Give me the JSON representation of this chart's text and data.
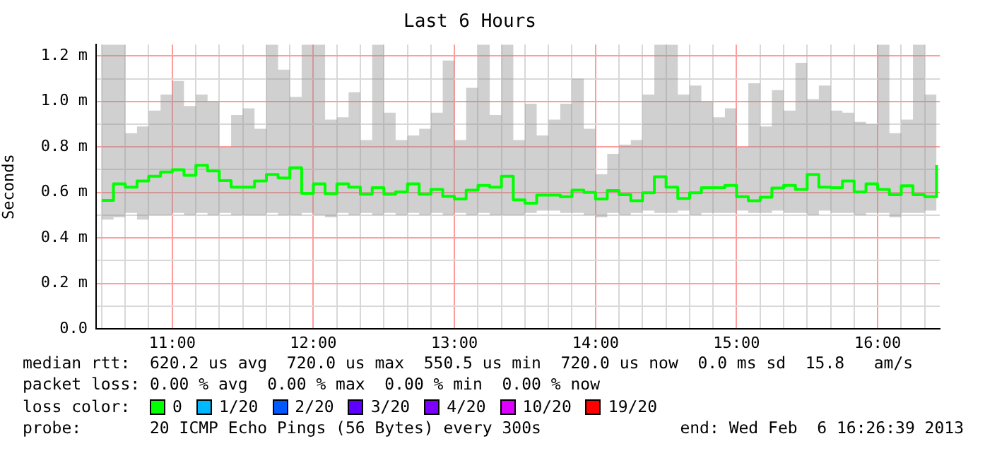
{
  "chart_data": {
    "type": "step",
    "title": "Last 6 Hours",
    "ylabel": "Seconds",
    "legend_title": "loss color:",
    "legend": "bottom",
    "grid": true,
    "x": [
      10.5,
      10.583,
      10.667,
      10.75,
      10.833,
      10.917,
      11,
      11.083,
      11.167,
      11.25,
      11.333,
      11.417,
      11.5,
      11.583,
      11.667,
      11.75,
      11.833,
      11.917,
      12,
      12.083,
      12.167,
      12.25,
      12.333,
      12.417,
      12.5,
      12.583,
      12.667,
      12.75,
      12.833,
      12.917,
      13,
      13.083,
      13.167,
      13.25,
      13.333,
      13.417,
      13.5,
      13.583,
      13.667,
      13.75,
      13.833,
      13.917,
      14,
      14.083,
      14.167,
      14.25,
      14.333,
      14.417,
      14.5,
      14.583,
      14.667,
      14.75,
      14.833,
      14.917,
      15,
      15.083,
      15.167,
      15.25,
      15.333,
      15.417,
      15.5,
      15.583,
      15.667,
      15.75,
      15.833,
      15.917,
      16,
      16.083,
      16.167,
      16.25,
      16.333,
      16.417
    ],
    "xlim": [
      10.46,
      16.44
    ],
    "xticks": [
      {
        "value": 10.5,
        "label": null
      },
      {
        "value": 10.667,
        "label": null
      },
      {
        "value": 10.833,
        "label": null
      },
      {
        "value": 11,
        "label": "11:00"
      },
      {
        "value": 11.167,
        "label": null
      },
      {
        "value": 11.333,
        "label": null
      },
      {
        "value": 11.5,
        "label": null
      },
      {
        "value": 11.667,
        "label": null
      },
      {
        "value": 11.833,
        "label": null
      },
      {
        "value": 12,
        "label": "12:00"
      },
      {
        "value": 12.167,
        "label": null
      },
      {
        "value": 12.333,
        "label": null
      },
      {
        "value": 12.5,
        "label": null
      },
      {
        "value": 12.667,
        "label": null
      },
      {
        "value": 12.833,
        "label": null
      },
      {
        "value": 13,
        "label": "13:00"
      },
      {
        "value": 13.167,
        "label": null
      },
      {
        "value": 13.333,
        "label": null
      },
      {
        "value": 13.5,
        "label": null
      },
      {
        "value": 13.667,
        "label": null
      },
      {
        "value": 13.833,
        "label": null
      },
      {
        "value": 14,
        "label": "14:00"
      },
      {
        "value": 14.167,
        "label": null
      },
      {
        "value": 14.333,
        "label": null
      },
      {
        "value": 14.5,
        "label": null
      },
      {
        "value": 14.667,
        "label": null
      },
      {
        "value": 14.833,
        "label": null
      },
      {
        "value": 15,
        "label": "15:00"
      },
      {
        "value": 15.167,
        "label": null
      },
      {
        "value": 15.333,
        "label": null
      },
      {
        "value": 15.5,
        "label": null
      },
      {
        "value": 15.667,
        "label": null
      },
      {
        "value": 15.833,
        "label": null
      },
      {
        "value": 16,
        "label": "16:00"
      },
      {
        "value": 16.167,
        "label": null
      },
      {
        "value": 16.333,
        "label": null
      }
    ],
    "ylim": [
      0,
      1.25
    ],
    "yticks": [
      {
        "value": 0,
        "label": "0.0"
      },
      {
        "value": 0.1,
        "label": null
      },
      {
        "value": 0.2,
        "label": "0.2 m"
      },
      {
        "value": 0.3,
        "label": null
      },
      {
        "value": 0.4,
        "label": "0.4 m"
      },
      {
        "value": 0.5,
        "label": null
      },
      {
        "value": 0.6,
        "label": "0.6 m"
      },
      {
        "value": 0.7,
        "label": null
      },
      {
        "value": 0.8,
        "label": "0.8 m"
      },
      {
        "value": 0.9,
        "label": null
      },
      {
        "value": 1.0,
        "label": "1.0 m"
      },
      {
        "value": 1.1,
        "label": null
      },
      {
        "value": 1.2,
        "label": "1.2 m"
      }
    ],
    "series": [
      {
        "name": "0",
        "color": "#00ff00",
        "values": [
          0.565,
          0.638,
          0.623,
          0.65,
          0.671,
          0.69,
          0.7,
          0.675,
          0.719,
          0.694,
          0.652,
          0.623,
          0.623,
          0.65,
          0.679,
          0.663,
          0.708,
          0.596,
          0.638,
          0.594,
          0.638,
          0.623,
          0.592,
          0.621,
          0.592,
          0.602,
          0.638,
          0.592,
          0.613,
          0.583,
          0.571,
          0.61,
          0.631,
          0.623,
          0.671,
          0.567,
          0.552,
          0.588,
          0.588,
          0.581,
          0.61,
          0.6,
          0.571,
          0.608,
          0.59,
          0.563,
          0.598,
          0.669,
          0.623,
          0.573,
          0.598,
          0.621,
          0.621,
          0.631,
          0.581,
          0.563,
          0.579,
          0.619,
          0.631,
          0.613,
          0.679,
          0.623,
          0.621,
          0.65,
          0.602,
          0.638,
          0.613,
          0.59,
          0.629,
          0.59,
          0.581,
          0.72
        ],
        "lower": [
          0.48,
          0.49,
          0.51,
          0.48,
          0.5,
          0.5,
          0.51,
          0.5,
          0.51,
          0.5,
          0.51,
          0.5,
          0.5,
          0.5,
          0.51,
          0.5,
          0.5,
          0.51,
          0.5,
          0.49,
          0.51,
          0.5,
          0.51,
          0.5,
          0.51,
          0.5,
          0.51,
          0.5,
          0.51,
          0.5,
          0.51,
          0.5,
          0.51,
          0.5,
          0.5,
          0.5,
          0.51,
          0.52,
          0.52,
          0.51,
          0.51,
          0.5,
          0.49,
          0.51,
          0.5,
          0.51,
          0.52,
          0.51,
          0.51,
          0.52,
          0.5,
          0.51,
          0.51,
          0.51,
          0.52,
          0.51,
          0.51,
          0.52,
          0.51,
          0.51,
          0.5,
          0.52,
          0.51,
          0.51,
          0.5,
          0.51,
          0.51,
          0.49,
          0.51,
          0.51,
          0.52,
          0.52
        ],
        "upper": [
          1.25,
          1.25,
          0.86,
          0.89,
          0.96,
          1.03,
          1.09,
          0.98,
          1.03,
          1.0,
          0.8,
          0.94,
          0.97,
          0.88,
          1.25,
          1.14,
          1.02,
          1.25,
          1.25,
          0.92,
          0.93,
          1.04,
          0.83,
          1.25,
          0.95,
          0.83,
          0.85,
          0.88,
          0.95,
          1.18,
          0.83,
          1.06,
          1.25,
          0.94,
          1.25,
          0.83,
          0.99,
          0.85,
          0.92,
          0.99,
          1.1,
          0.88,
          0.68,
          0.77,
          0.81,
          0.83,
          1.03,
          1.25,
          1.25,
          1.03,
          1.07,
          1.0,
          0.93,
          0.97,
          0.8,
          1.08,
          0.89,
          1.05,
          0.96,
          1.17,
          1.01,
          1.07,
          0.96,
          0.95,
          0.91,
          0.9,
          1.25,
          0.86,
          0.92,
          1.25,
          1.03,
          1.25
        ]
      },
      {
        "name": "1/20",
        "color": "#00b8ff",
        "values": [
          null,
          null,
          null,
          null,
          null,
          null,
          null,
          null,
          null,
          null,
          null,
          null,
          null,
          null,
          null,
          null,
          null,
          null,
          null,
          null,
          null,
          null,
          null,
          null,
          null,
          null,
          null,
          null,
          null,
          null,
          null,
          null,
          null,
          null,
          null,
          null,
          null,
          null,
          null,
          null,
          null,
          null,
          null,
          null,
          null,
          null,
          null,
          null,
          null,
          null,
          null,
          null,
          null,
          null,
          null,
          null,
          null,
          null,
          null,
          null,
          null,
          null,
          null,
          null,
          null,
          null,
          null,
          null,
          null,
          null,
          null,
          null
        ]
      },
      {
        "name": "2/20",
        "color": "#0059ff",
        "values": [
          null,
          null,
          null,
          null,
          null,
          null,
          null,
          null,
          null,
          null,
          null,
          null,
          null,
          null,
          null,
          null,
          null,
          null,
          null,
          null,
          null,
          null,
          null,
          null,
          null,
          null,
          null,
          null,
          null,
          null,
          null,
          null,
          null,
          null,
          null,
          null,
          null,
          null,
          null,
          null,
          null,
          null,
          null,
          null,
          null,
          null,
          null,
          null,
          null,
          null,
          null,
          null,
          null,
          null,
          null,
          null,
          null,
          null,
          null,
          null,
          null,
          null,
          null,
          null,
          null,
          null,
          null,
          null,
          null,
          null,
          null,
          null
        ]
      },
      {
        "name": "3/20",
        "color": "#5e00ff",
        "values": [
          null,
          null,
          null,
          null,
          null,
          null,
          null,
          null,
          null,
          null,
          null,
          null,
          null,
          null,
          null,
          null,
          null,
          null,
          null,
          null,
          null,
          null,
          null,
          null,
          null,
          null,
          null,
          null,
          null,
          null,
          null,
          null,
          null,
          null,
          null,
          null,
          null,
          null,
          null,
          null,
          null,
          null,
          null,
          null,
          null,
          null,
          null,
          null,
          null,
          null,
          null,
          null,
          null,
          null,
          null,
          null,
          null,
          null,
          null,
          null,
          null,
          null,
          null,
          null,
          null,
          null,
          null,
          null,
          null,
          null,
          null,
          null
        ]
      },
      {
        "name": "4/20",
        "color": "#7e00ff",
        "values": [
          null,
          null,
          null,
          null,
          null,
          null,
          null,
          null,
          null,
          null,
          null,
          null,
          null,
          null,
          null,
          null,
          null,
          null,
          null,
          null,
          null,
          null,
          null,
          null,
          null,
          null,
          null,
          null,
          null,
          null,
          null,
          null,
          null,
          null,
          null,
          null,
          null,
          null,
          null,
          null,
          null,
          null,
          null,
          null,
          null,
          null,
          null,
          null,
          null,
          null,
          null,
          null,
          null,
          null,
          null,
          null,
          null,
          null,
          null,
          null,
          null,
          null,
          null,
          null,
          null,
          null,
          null,
          null,
          null,
          null,
          null,
          null
        ]
      },
      {
        "name": "10/20",
        "color": "#dd00ff",
        "values": [
          null,
          null,
          null,
          null,
          null,
          null,
          null,
          null,
          null,
          null,
          null,
          null,
          null,
          null,
          null,
          null,
          null,
          null,
          null,
          null,
          null,
          null,
          null,
          null,
          null,
          null,
          null,
          null,
          null,
          null,
          null,
          null,
          null,
          null,
          null,
          null,
          null,
          null,
          null,
          null,
          null,
          null,
          null,
          null,
          null,
          null,
          null,
          null,
          null,
          null,
          null,
          null,
          null,
          null,
          null,
          null,
          null,
          null,
          null,
          null,
          null,
          null,
          null,
          null,
          null,
          null,
          null,
          null,
          null,
          null,
          null,
          null
        ]
      },
      {
        "name": "19/20",
        "color": "#ff0000",
        "values": [
          null,
          null,
          null,
          null,
          null,
          null,
          null,
          null,
          null,
          null,
          null,
          null,
          null,
          null,
          null,
          null,
          null,
          null,
          null,
          null,
          null,
          null,
          null,
          null,
          null,
          null,
          null,
          null,
          null,
          null,
          null,
          null,
          null,
          null,
          null,
          null,
          null,
          null,
          null,
          null,
          null,
          null,
          null,
          null,
          null,
          null,
          null,
          null,
          null,
          null,
          null,
          null,
          null,
          null,
          null,
          null,
          null,
          null,
          null,
          null,
          null,
          null,
          null,
          null,
          null,
          null,
          null,
          null,
          null,
          null,
          null,
          null
        ]
      }
    ],
    "annotations": [
      "median rtt:  620.2 us avg  720.0 us max  550.5 us min  720.0 us now  0.0 ms sd  15.8   am/s",
      "packet loss: 0.00 % avg  0.00 % max  0.00 % min  0.00 % now",
      "probe:       20 ICMP Echo Pings (56 Bytes) every 300s",
      "end: Wed Feb  6 16:26:39 2013"
    ]
  }
}
